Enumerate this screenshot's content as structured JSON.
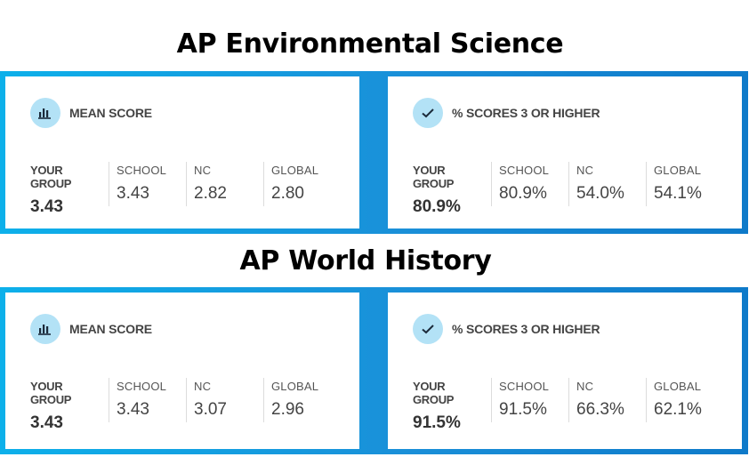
{
  "sections": [
    {
      "title": "AP Environmental Science",
      "cards": [
        {
          "icon": "bar-chart-icon",
          "title": "MEAN SCORE",
          "stats": [
            {
              "label": "YOUR GROUP",
              "value": "3.43"
            },
            {
              "label": "SCHOOL",
              "value": "3.43"
            },
            {
              "label": "NC",
              "value": "2.82"
            },
            {
              "label": "GLOBAL",
              "value": "2.80"
            }
          ]
        },
        {
          "icon": "checkmark-icon",
          "title": "% SCORES 3 OR HIGHER",
          "stats": [
            {
              "label": "YOUR GROUP",
              "value": "80.9%"
            },
            {
              "label": "SCHOOL",
              "value": "80.9%"
            },
            {
              "label": "NC",
              "value": "54.0%"
            },
            {
              "label": "GLOBAL",
              "value": "54.1%"
            }
          ]
        }
      ]
    },
    {
      "title": "AP World History",
      "cards": [
        {
          "icon": "bar-chart-icon",
          "title": "MEAN SCORE",
          "stats": [
            {
              "label": "YOUR GROUP",
              "value": "3.43"
            },
            {
              "label": "SCHOOL",
              "value": "3.43"
            },
            {
              "label": "NC",
              "value": "3.07"
            },
            {
              "label": "GLOBAL",
              "value": "2.96"
            }
          ]
        },
        {
          "icon": "checkmark-icon",
          "title": "% SCORES 3 OR HIGHER",
          "stats": [
            {
              "label": "YOUR GROUP",
              "value": "91.5%"
            },
            {
              "label": "SCHOOL",
              "value": "91.5%"
            },
            {
              "label": "NC",
              "value": "66.3%"
            },
            {
              "label": "GLOBAL",
              "value": "62.1%"
            }
          ]
        }
      ]
    }
  ],
  "colors": {
    "panel_gradient_start": "#0db0ea",
    "panel_gradient_end": "#0e7ac9",
    "icon_bg": "#b3e2f6",
    "icon_fg": "#1b2a3a"
  }
}
